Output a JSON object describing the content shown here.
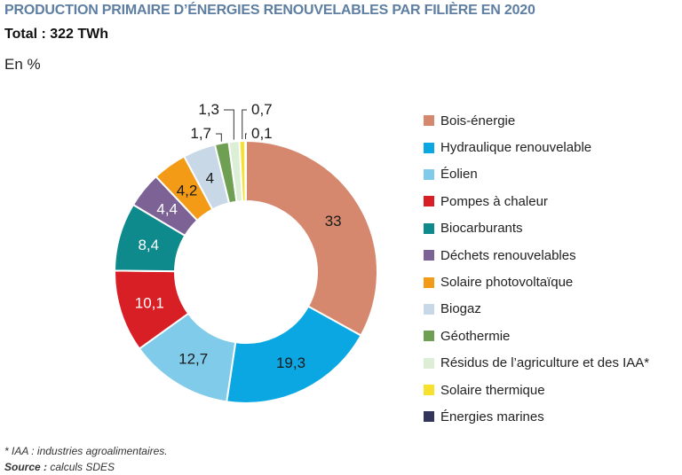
{
  "header": {
    "title": "PRODUCTION PRIMAIRE D’ÉNERGIES RENOUVELABLES PAR FILIÈRE EN 2020",
    "total": "Total : 322 TWh",
    "unit": "En %"
  },
  "footer": {
    "footnote": "* IAA : industries agroalimentaires.",
    "source_label": "Source :",
    "source_text": " calculs SDES"
  },
  "chart_data": {
    "type": "pie",
    "donut": true,
    "title": "PRODUCTION PRIMAIRE D’ÉNERGIES RENOUVELABLES PAR FILIÈRE EN 2020",
    "unit": "En %",
    "legend_position": "right",
    "slices": [
      {
        "name": "Bois-énergie",
        "value": 33,
        "label": "33",
        "color": "#d5886e",
        "label_color": "#1a1a1a"
      },
      {
        "name": "Hydraulique renouvelable",
        "value": 19.3,
        "label": "19,3",
        "color": "#0aa7e3",
        "label_color": "#1a1a1a"
      },
      {
        "name": "Éolien",
        "value": 12.7,
        "label": "12,7",
        "color": "#80cbe9",
        "label_color": "#1a1a1a"
      },
      {
        "name": "Pompes à chaleur",
        "value": 10.1,
        "label": "10,1",
        "color": "#d91f26",
        "label_color": "#ffffff"
      },
      {
        "name": "Biocarburants",
        "value": 8.4,
        "label": "8,4",
        "color": "#0e8a8c",
        "label_color": "#ffffff"
      },
      {
        "name": "Déchets renouvelables",
        "value": 4.4,
        "label": "4,4",
        "color": "#7c6295",
        "label_color": "#ffffff"
      },
      {
        "name": "Solaire photovoltaïque",
        "value": 4.2,
        "label": "4,2",
        "color": "#f39a16",
        "label_color": "#1a1a1a"
      },
      {
        "name": "Biogaz",
        "value": 4,
        "label": "4",
        "color": "#c8d8e6",
        "label_color": "#1a1a1a"
      },
      {
        "name": "Géothermie",
        "value": 1.7,
        "label": "1,7",
        "color": "#6f9f52",
        "label_color": "#1a1a1a"
      },
      {
        "name": "Résidus de l’agriculture et des IAA*",
        "value": 1.3,
        "label": "1,3",
        "color": "#dcefd6",
        "label_color": "#1a1a1a"
      },
      {
        "name": "Solaire thermique",
        "value": 0.7,
        "label": "0,7",
        "color": "#f8e12d",
        "label_color": "#1a1a1a"
      },
      {
        "name": "Énergies marines",
        "value": 0.1,
        "label": "0,1",
        "color": "#34355a",
        "label_color": "#1a1a1a"
      }
    ]
  }
}
